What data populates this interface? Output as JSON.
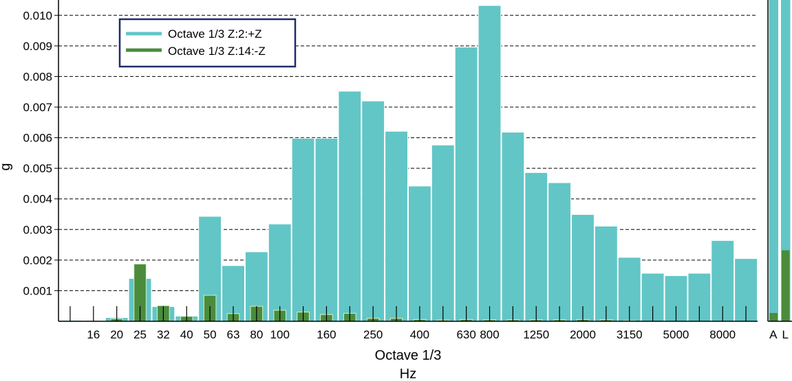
{
  "chart_data": {
    "type": "bar",
    "xlabel": "Octave 1/3",
    "xunit": "Hz",
    "ylabel": "g",
    "ylim": [
      0,
      0.0105
    ],
    "yticks": [
      "0.001",
      "0.002",
      "0.003",
      "0.004",
      "0.005",
      "0.006",
      "0.007",
      "0.008",
      "0.009",
      "0.010"
    ],
    "grid": true,
    "legend_position": "top-left",
    "bands": [
      "12.5",
      "16",
      "20",
      "25",
      "31.5",
      "40",
      "50",
      "63",
      "80",
      "100",
      "125",
      "160",
      "200",
      "250",
      "315",
      "400",
      "500",
      "630",
      "800",
      "1000",
      "1250",
      "1600",
      "2000",
      "2500",
      "3150",
      "4000",
      "5000",
      "6300",
      "8000",
      "10000"
    ],
    "x_tick_labels": [
      {
        "band": "16",
        "label": "16"
      },
      {
        "band": "20",
        "label": "20"
      },
      {
        "band": "25",
        "label": "25"
      },
      {
        "band": "31.5",
        "label": "32"
      },
      {
        "band": "40",
        "label": "40"
      },
      {
        "band": "50",
        "label": "50"
      },
      {
        "band": "63",
        "label": "63"
      },
      {
        "band": "80",
        "label": "80"
      },
      {
        "band": "100",
        "label": "100"
      },
      {
        "band": "160",
        "label": "160"
      },
      {
        "band": "250",
        "label": "250"
      },
      {
        "band": "400",
        "label": "400"
      },
      {
        "band": "630",
        "label": "630"
      },
      {
        "band": "800",
        "label": "800"
      },
      {
        "band": "1250",
        "label": "1250"
      },
      {
        "band": "2000",
        "label": "2000"
      },
      {
        "band": "3150",
        "label": "3150"
      },
      {
        "band": "5000",
        "label": "5000"
      },
      {
        "band": "8000",
        "label": "8000"
      }
    ],
    "series": [
      {
        "name": "Octave 1/3 Z:2:+Z",
        "color": "#62c6c6",
        "values": [
          3e-05,
          2e-05,
          0.00012,
          0.0014,
          0.00048,
          0.00017,
          0.00343,
          0.00182,
          0.00227,
          0.00318,
          0.00598,
          0.00598,
          0.00752,
          0.0072,
          0.00621,
          0.00442,
          0.00576,
          0.00896,
          0.01032,
          0.00618,
          0.00486,
          0.00453,
          0.00349,
          0.00311,
          0.00209,
          0.00157,
          0.00149,
          0.00157,
          0.00264,
          0.00205
        ]
      },
      {
        "name": "Octave 1/3 Z:14:-Z",
        "color": "#4a8c3c",
        "values": [
          0,
          1e-05,
          8e-05,
          0.00187,
          0.00051,
          0.00016,
          0.00085,
          0.00025,
          0.00049,
          0.00036,
          0.0003,
          0.00022,
          0.00026,
          0.0001,
          0.0001,
          6e-05,
          4e-05,
          6e-05,
          5e-05,
          5e-05,
          5e-05,
          5e-05,
          6e-05,
          5e-05,
          2e-05,
          0.0,
          0.0,
          0.0,
          0.0,
          0.0
        ]
      }
    ],
    "summary": {
      "categories": [
        "A",
        "L"
      ],
      "series": [
        {
          "name": "Octave 1/3 Z:2:+Z",
          "values": [
            0.0105,
            0.0105
          ]
        },
        {
          "name": "Octave 1/3 Z:14:-Z",
          "values": [
            0.00027,
            0.00232
          ]
        }
      ]
    }
  }
}
